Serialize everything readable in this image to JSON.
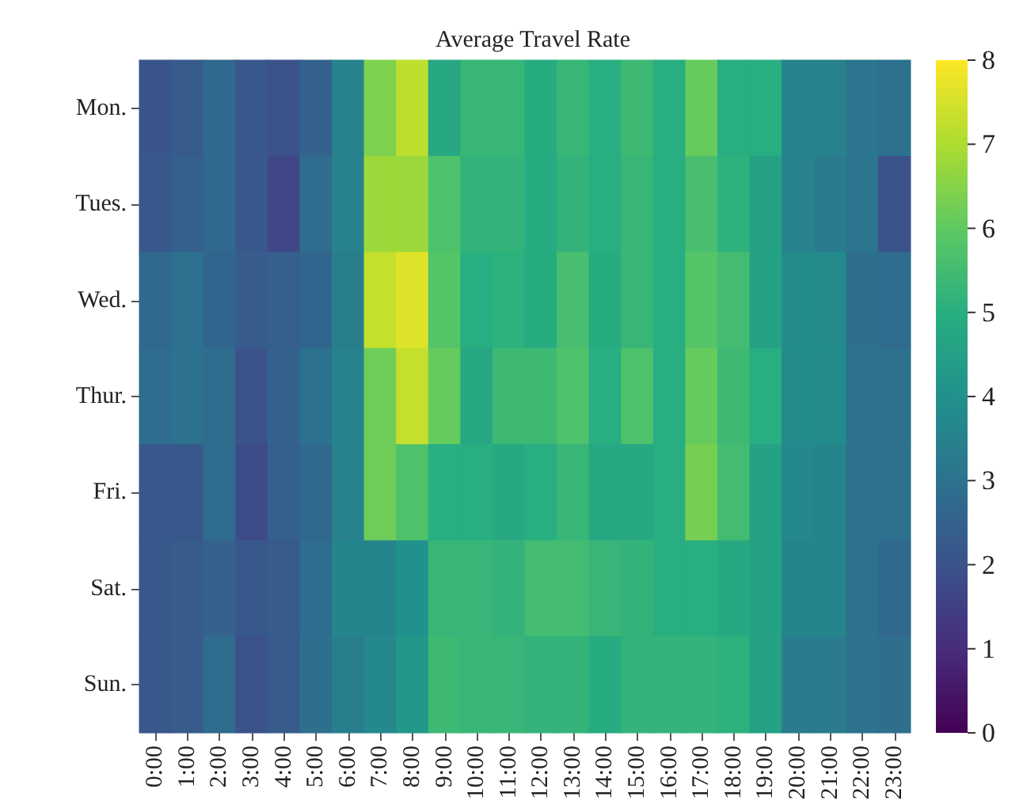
{
  "chart_data": {
    "type": "heatmap",
    "title": "Average Travel Rate",
    "categories": [
      "0:00",
      "1:00",
      "2:00",
      "3:00",
      "4:00",
      "5:00",
      "6:00",
      "7:00",
      "8:00",
      "9:00",
      "10:00",
      "11:00",
      "12:00",
      "13:00",
      "14:00",
      "15:00",
      "16:00",
      "17:00",
      "18:00",
      "19:00",
      "20:00",
      "21:00",
      "22:00",
      "23:00"
    ],
    "y_categories": [
      "Mon.",
      "Tues.",
      "Wed.",
      "Thur.",
      "Fri.",
      "Sat.",
      "Sun."
    ],
    "cells": [
      [
        2.1,
        2.3,
        2.7,
        2.2,
        2.0,
        2.5,
        3.5,
        6.4,
        7.2,
        4.8,
        5.3,
        5.3,
        4.9,
        5.3,
        5.0,
        5.4,
        5.0,
        6.1,
        5.0,
        5.0,
        3.5,
        3.5,
        3.1,
        3.0
      ],
      [
        2.2,
        2.4,
        2.7,
        2.2,
        1.7,
        2.8,
        3.5,
        6.8,
        6.8,
        5.7,
        5.2,
        5.2,
        4.9,
        5.2,
        5.0,
        5.3,
        5.0,
        5.6,
        5.1,
        4.6,
        3.5,
        3.3,
        3.1,
        2.0
      ],
      [
        2.7,
        3.0,
        2.6,
        2.3,
        2.4,
        2.6,
        3.4,
        7.3,
        7.6,
        5.8,
        5.0,
        5.1,
        4.9,
        5.6,
        4.9,
        5.3,
        5.0,
        5.8,
        5.5,
        4.6,
        3.8,
        3.8,
        2.9,
        2.8
      ],
      [
        2.8,
        3.0,
        2.8,
        2.0,
        2.5,
        3.0,
        3.5,
        6.2,
        7.3,
        6.1,
        4.8,
        5.4,
        5.4,
        5.7,
        5.0,
        5.7,
        5.0,
        6.1,
        5.4,
        5.0,
        3.8,
        3.8,
        3.0,
        3.0
      ],
      [
        2.2,
        2.2,
        2.8,
        1.8,
        2.4,
        2.7,
        3.5,
        6.2,
        5.7,
        5.0,
        5.0,
        4.8,
        5.0,
        5.3,
        4.8,
        4.8,
        5.0,
        6.3,
        5.5,
        4.6,
        3.7,
        3.6,
        3.0,
        3.0
      ],
      [
        2.2,
        2.3,
        2.5,
        2.2,
        2.3,
        2.8,
        3.6,
        3.6,
        4.0,
        5.3,
        5.3,
        5.2,
        5.5,
        5.5,
        5.3,
        5.2,
        5.0,
        5.0,
        4.8,
        4.6,
        3.6,
        3.6,
        3.0,
        2.7
      ],
      [
        2.2,
        2.3,
        2.8,
        2.0,
        2.3,
        2.9,
        3.4,
        3.7,
        4.2,
        5.4,
        5.3,
        5.3,
        5.2,
        5.2,
        4.9,
        5.2,
        5.2,
        5.2,
        5.1,
        4.6,
        3.3,
        3.3,
        3.0,
        2.9
      ]
    ],
    "clim": [
      0,
      8
    ],
    "cticks": [
      0,
      1,
      2,
      3,
      4,
      5,
      6,
      7,
      8
    ]
  }
}
